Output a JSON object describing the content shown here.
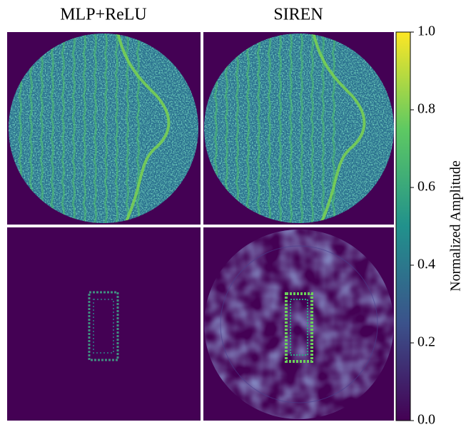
{
  "chart_data": {
    "type": "image-grid",
    "columns": [
      "MLP+ReLU",
      "SIREN"
    ],
    "colorbar": {
      "label": "Normalized Amplitude",
      "lim": [
        0,
        1
      ],
      "colors": [
        "#440154",
        "#3b528b",
        "#21918c",
        "#5ec962",
        "#fde725"
      ],
      "ticks": [
        {
          "value": 0,
          "label": "0.0"
        },
        {
          "value": 0.2,
          "label": "0.2"
        },
        {
          "value": 0.4,
          "label": "0.4"
        },
        {
          "value": 0.6,
          "label": "0.6"
        },
        {
          "value": 0.8,
          "label": "0.8"
        },
        {
          "value": 1,
          "label": "1.0"
        }
      ]
    }
  }
}
